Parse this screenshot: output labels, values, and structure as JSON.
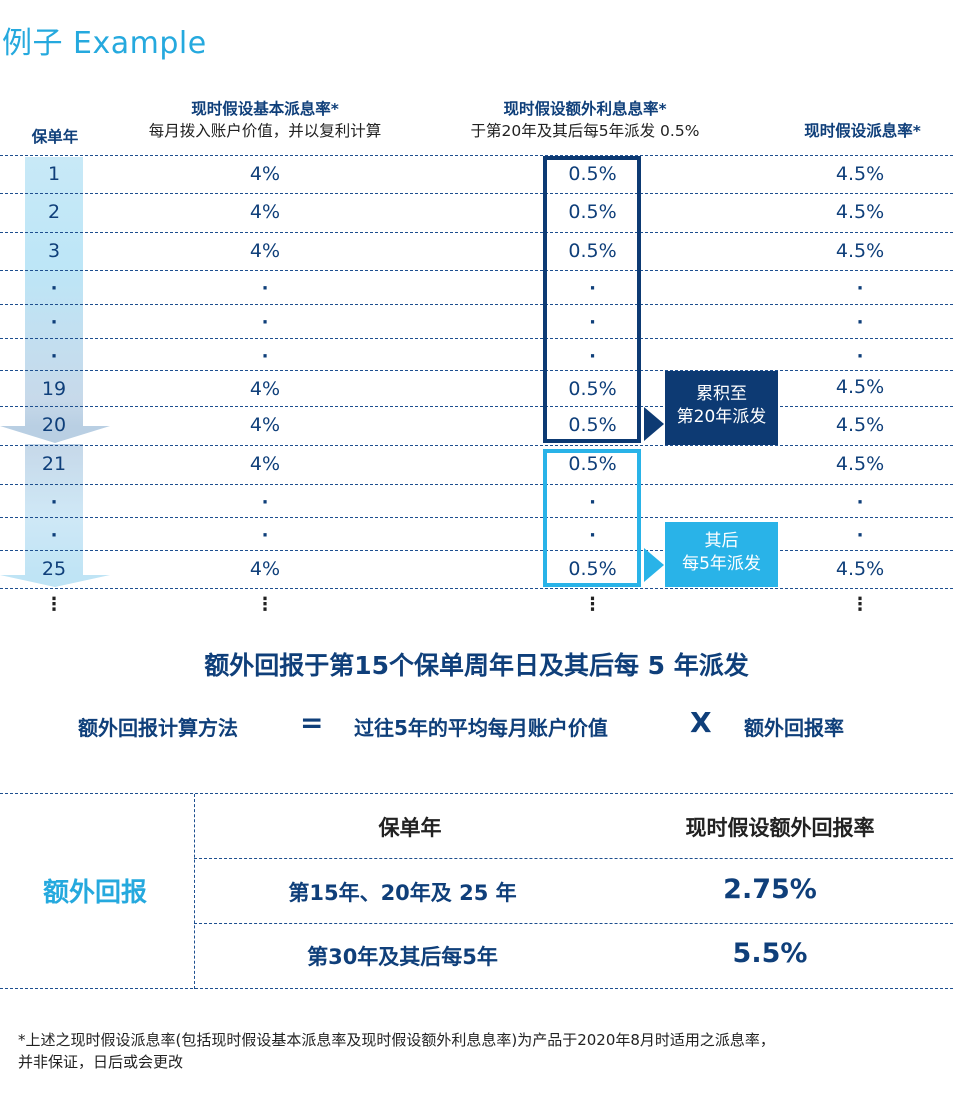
{
  "title": "例子  Example",
  "headers": {
    "year": "保单年",
    "base_rate_title": "现时假设基本派息率*",
    "base_rate_sub": "每月拨入账户价值，并以复利计算",
    "extra_rate_title": "现时假设额外利息息率*",
    "extra_rate_sub": "于第20年及其后每5年派发 0.5%",
    "total_rate_title": "现时假设派息率*"
  },
  "rows": [
    {
      "year": "1",
      "base": "4%",
      "extra": "0.5%",
      "total": "4.5%"
    },
    {
      "year": "2",
      "base": "4%",
      "extra": "0.5%",
      "total": "4.5%"
    },
    {
      "year": "3",
      "base": "4%",
      "extra": "0.5%",
      "total": "4.5%"
    },
    {
      "year": "·",
      "base": "·",
      "extra": "·",
      "total": "·"
    },
    {
      "year": "·",
      "base": "·",
      "extra": "·",
      "total": "·"
    },
    {
      "year": "·",
      "base": "·",
      "extra": "·",
      "total": "·"
    },
    {
      "year": "19",
      "base": "4%",
      "extra": "0.5%",
      "total": "4.5%"
    },
    {
      "year": "20",
      "base": "4%",
      "extra": "0.5%",
      "total": "4.5%"
    },
    {
      "year": "21",
      "base": "4%",
      "extra": "0.5%",
      "total": "4.5%"
    },
    {
      "year": "·",
      "base": "·",
      "extra": "·",
      "total": "·"
    },
    {
      "year": "·",
      "base": "·",
      "extra": "·",
      "total": "·"
    },
    {
      "year": "25",
      "base": "4%",
      "extra": "0.5%",
      "total": "4.5%"
    },
    {
      "year": "⋮",
      "base": "⋮",
      "extra": "⋮",
      "total": "⋮"
    }
  ],
  "tags": {
    "accumulate_line1": "累积至",
    "accumulate_line2": "第20年派发",
    "after_line1": "其后",
    "after_line2": "每5年派发"
  },
  "headline": "额外回报于第15个保单周年日及其后每 5 年派发",
  "formula": {
    "label": "额外回报计算方法",
    "equals": "=",
    "term1": "过往5年的平均每月账户价值",
    "times": "X",
    "term2": "额外回报率"
  },
  "bonus_table": {
    "label": "额外回报",
    "col_year": "保单年",
    "col_rate": "现时假设额外回报率",
    "rows": [
      {
        "year": "第15年、20年及 25 年",
        "rate": "2.75%"
      },
      {
        "year": "第30年及其后每5年",
        "rate": "5.5%"
      }
    ]
  },
  "footnote_line1": "*上述之现时假设派息率(包括现时假设基本派息率及现时假设额外利息息率)为产品于2020年8月时适用之派息率，",
  "footnote_line2": "并非保证，日后或会更改",
  "colors": {
    "dark_blue": "#0d3a73",
    "light_blue": "#29b3e8",
    "title_blue": "#25a9de"
  }
}
